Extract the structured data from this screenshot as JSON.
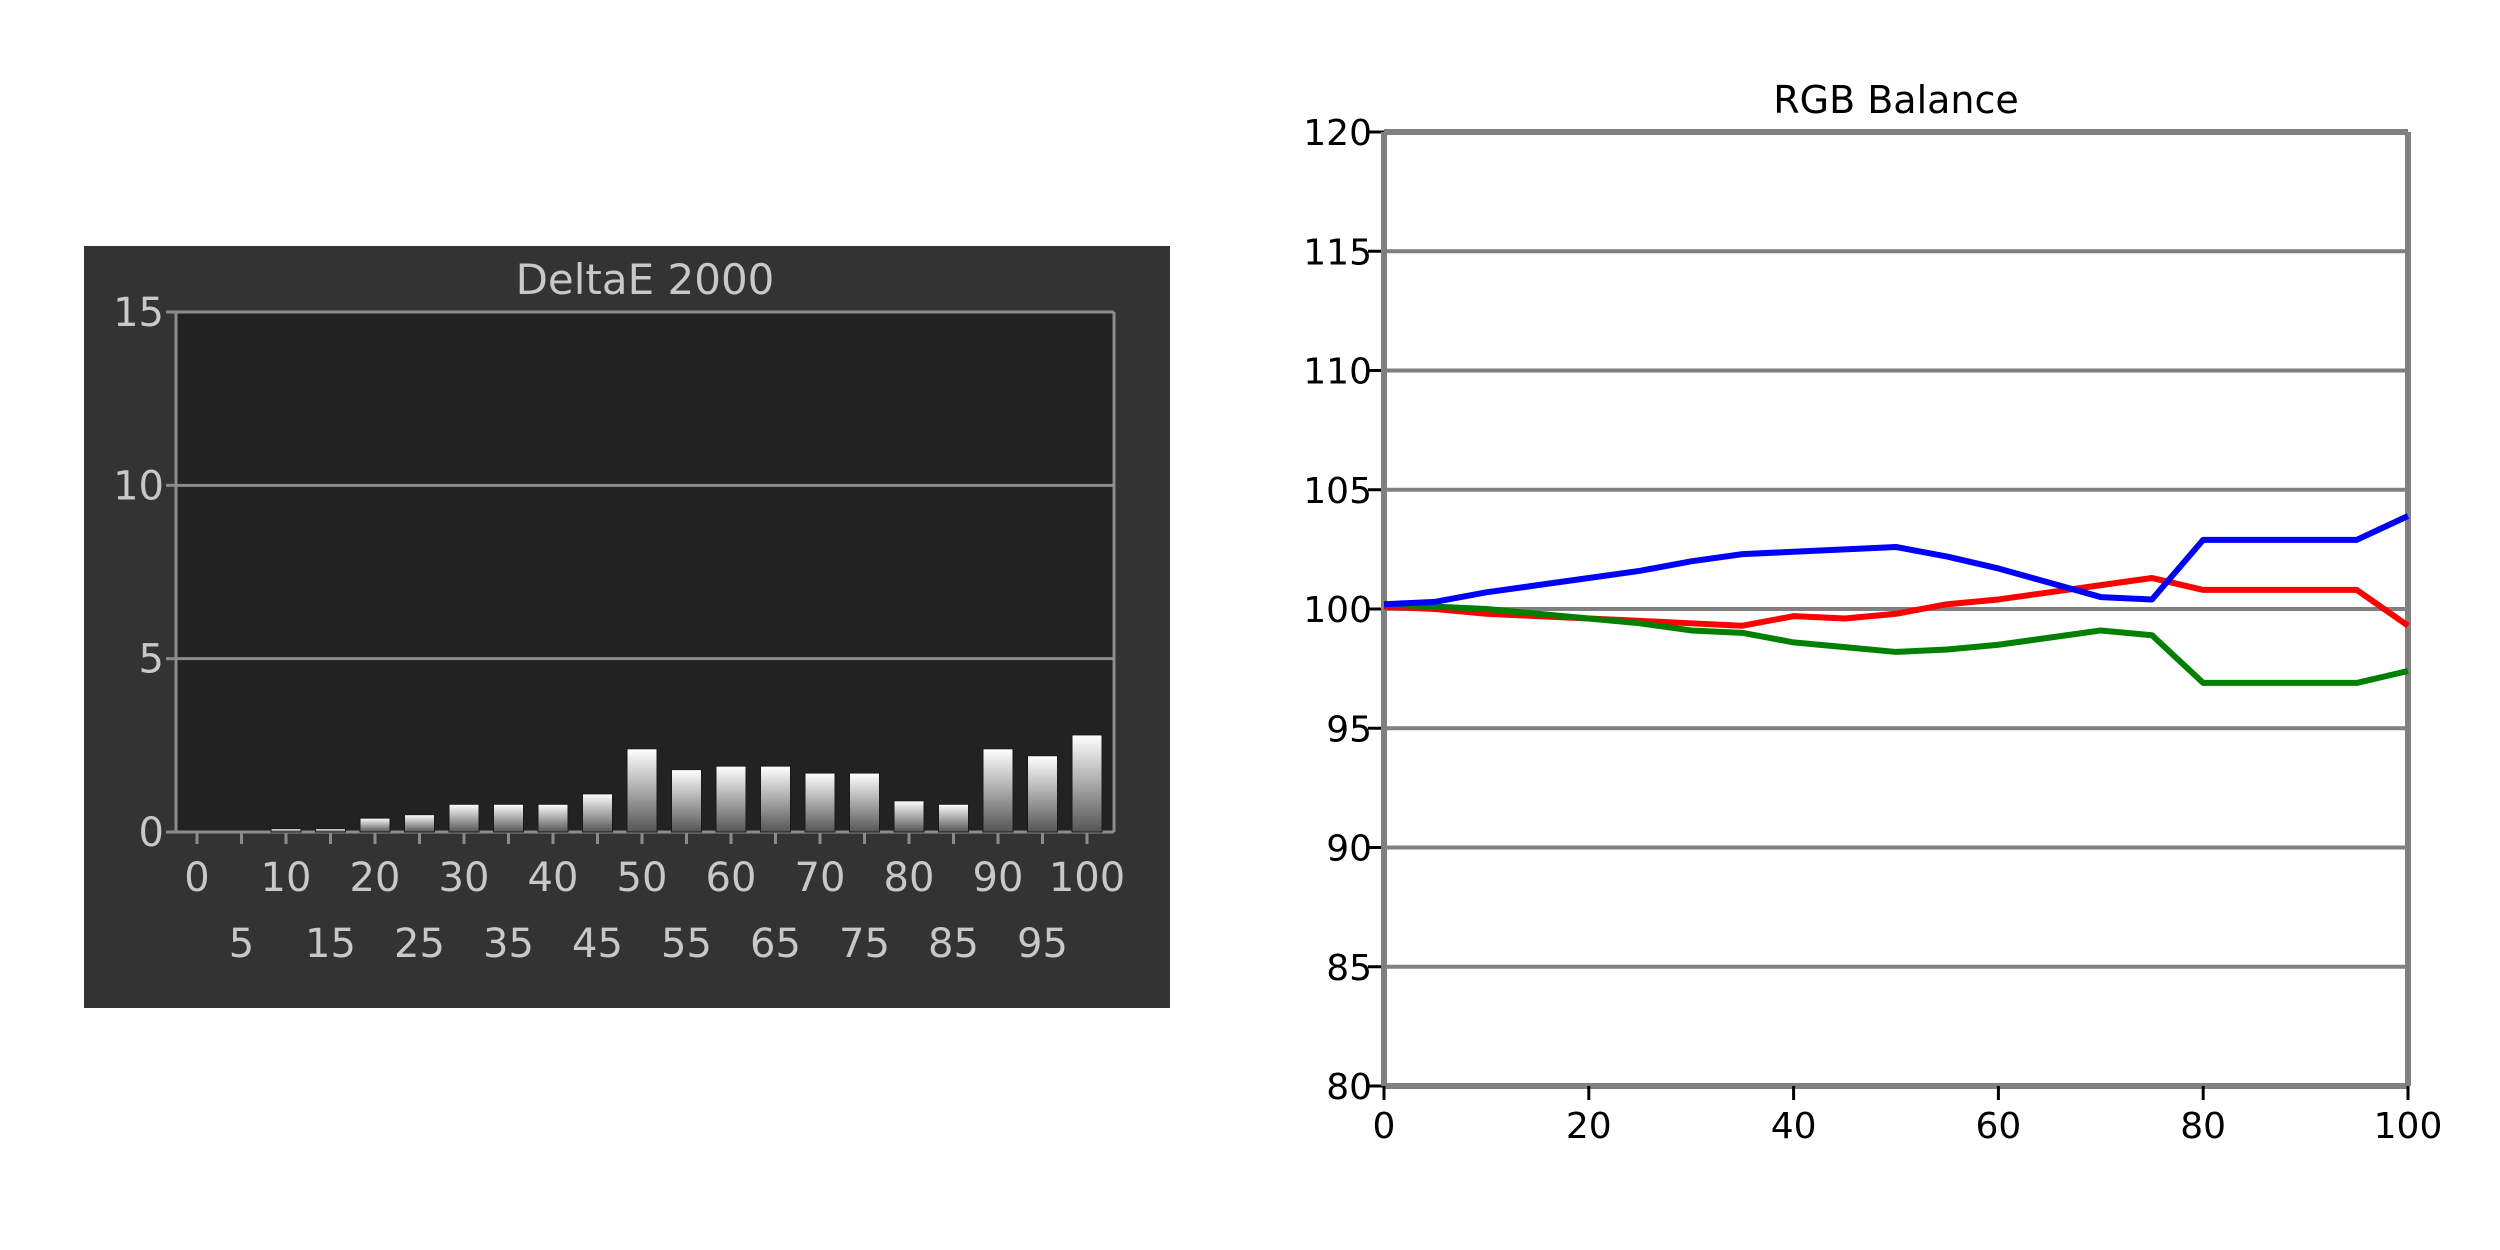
{
  "chart_data": [
    {
      "type": "bar",
      "title": "DeltaE 2000",
      "categories": [
        "0",
        "5",
        "10",
        "15",
        "20",
        "25",
        "30",
        "35",
        "40",
        "45",
        "50",
        "55",
        "60",
        "65",
        "70",
        "75",
        "80",
        "85",
        "90",
        "95",
        "100"
      ],
      "values": [
        0,
        0,
        0.1,
        0.1,
        0.4,
        0.5,
        0.8,
        0.8,
        0.8,
        1.1,
        2.4,
        1.8,
        1.9,
        1.9,
        1.7,
        1.7,
        0.9,
        0.8,
        2.4,
        2.2,
        2.8
      ],
      "ylim": [
        0,
        15
      ],
      "yticks": [
        0,
        5,
        10,
        15
      ],
      "grid": true,
      "colors": {
        "panel": "#333333",
        "plot": "#222222",
        "grid": "#8c8c8c",
        "text": "#c8c8c8",
        "bar_dark": "#555555",
        "bar_light": "#ffffff"
      }
    },
    {
      "type": "line",
      "title": "RGB Balance",
      "x": [
        0,
        5,
        10,
        15,
        20,
        25,
        30,
        35,
        40,
        45,
        50,
        55,
        60,
        65,
        70,
        75,
        80,
        85,
        90,
        95,
        100
      ],
      "series": [
        {
          "color": "#ff0000",
          "values": [
            100.1,
            100.0,
            99.8,
            99.7,
            99.6,
            99.5,
            99.4,
            99.3,
            99.7,
            99.6,
            99.8,
            100.2,
            100.4,
            100.7,
            101.0,
            101.3,
            100.8,
            100.8,
            100.8,
            100.8,
            99.3
          ]
        },
        {
          "color": "#008000",
          "values": [
            100.2,
            100.1,
            100.0,
            99.8,
            99.6,
            99.4,
            99.1,
            99.0,
            98.6,
            98.4,
            98.2,
            98.3,
            98.5,
            98.8,
            99.1,
            98.9,
            96.9,
            96.9,
            96.9,
            96.9,
            97.4
          ]
        },
        {
          "color": "#0000ff",
          "values": [
            100.2,
            100.3,
            100.7,
            101.0,
            101.3,
            101.6,
            102.0,
            102.3,
            102.4,
            102.5,
            102.6,
            102.2,
            101.7,
            101.1,
            100.5,
            100.4,
            102.9,
            102.9,
            102.9,
            102.9,
            103.9
          ]
        }
      ],
      "xlim": [
        0,
        100
      ],
      "ylim": [
        80,
        120
      ],
      "xticks": [
        0,
        20,
        40,
        60,
        80,
        100
      ],
      "yticks": [
        80,
        85,
        90,
        95,
        100,
        105,
        110,
        115,
        120
      ],
      "grid": true,
      "colors": {
        "grid": "#808080",
        "frame": "#808080",
        "text": "#000000"
      }
    }
  ]
}
